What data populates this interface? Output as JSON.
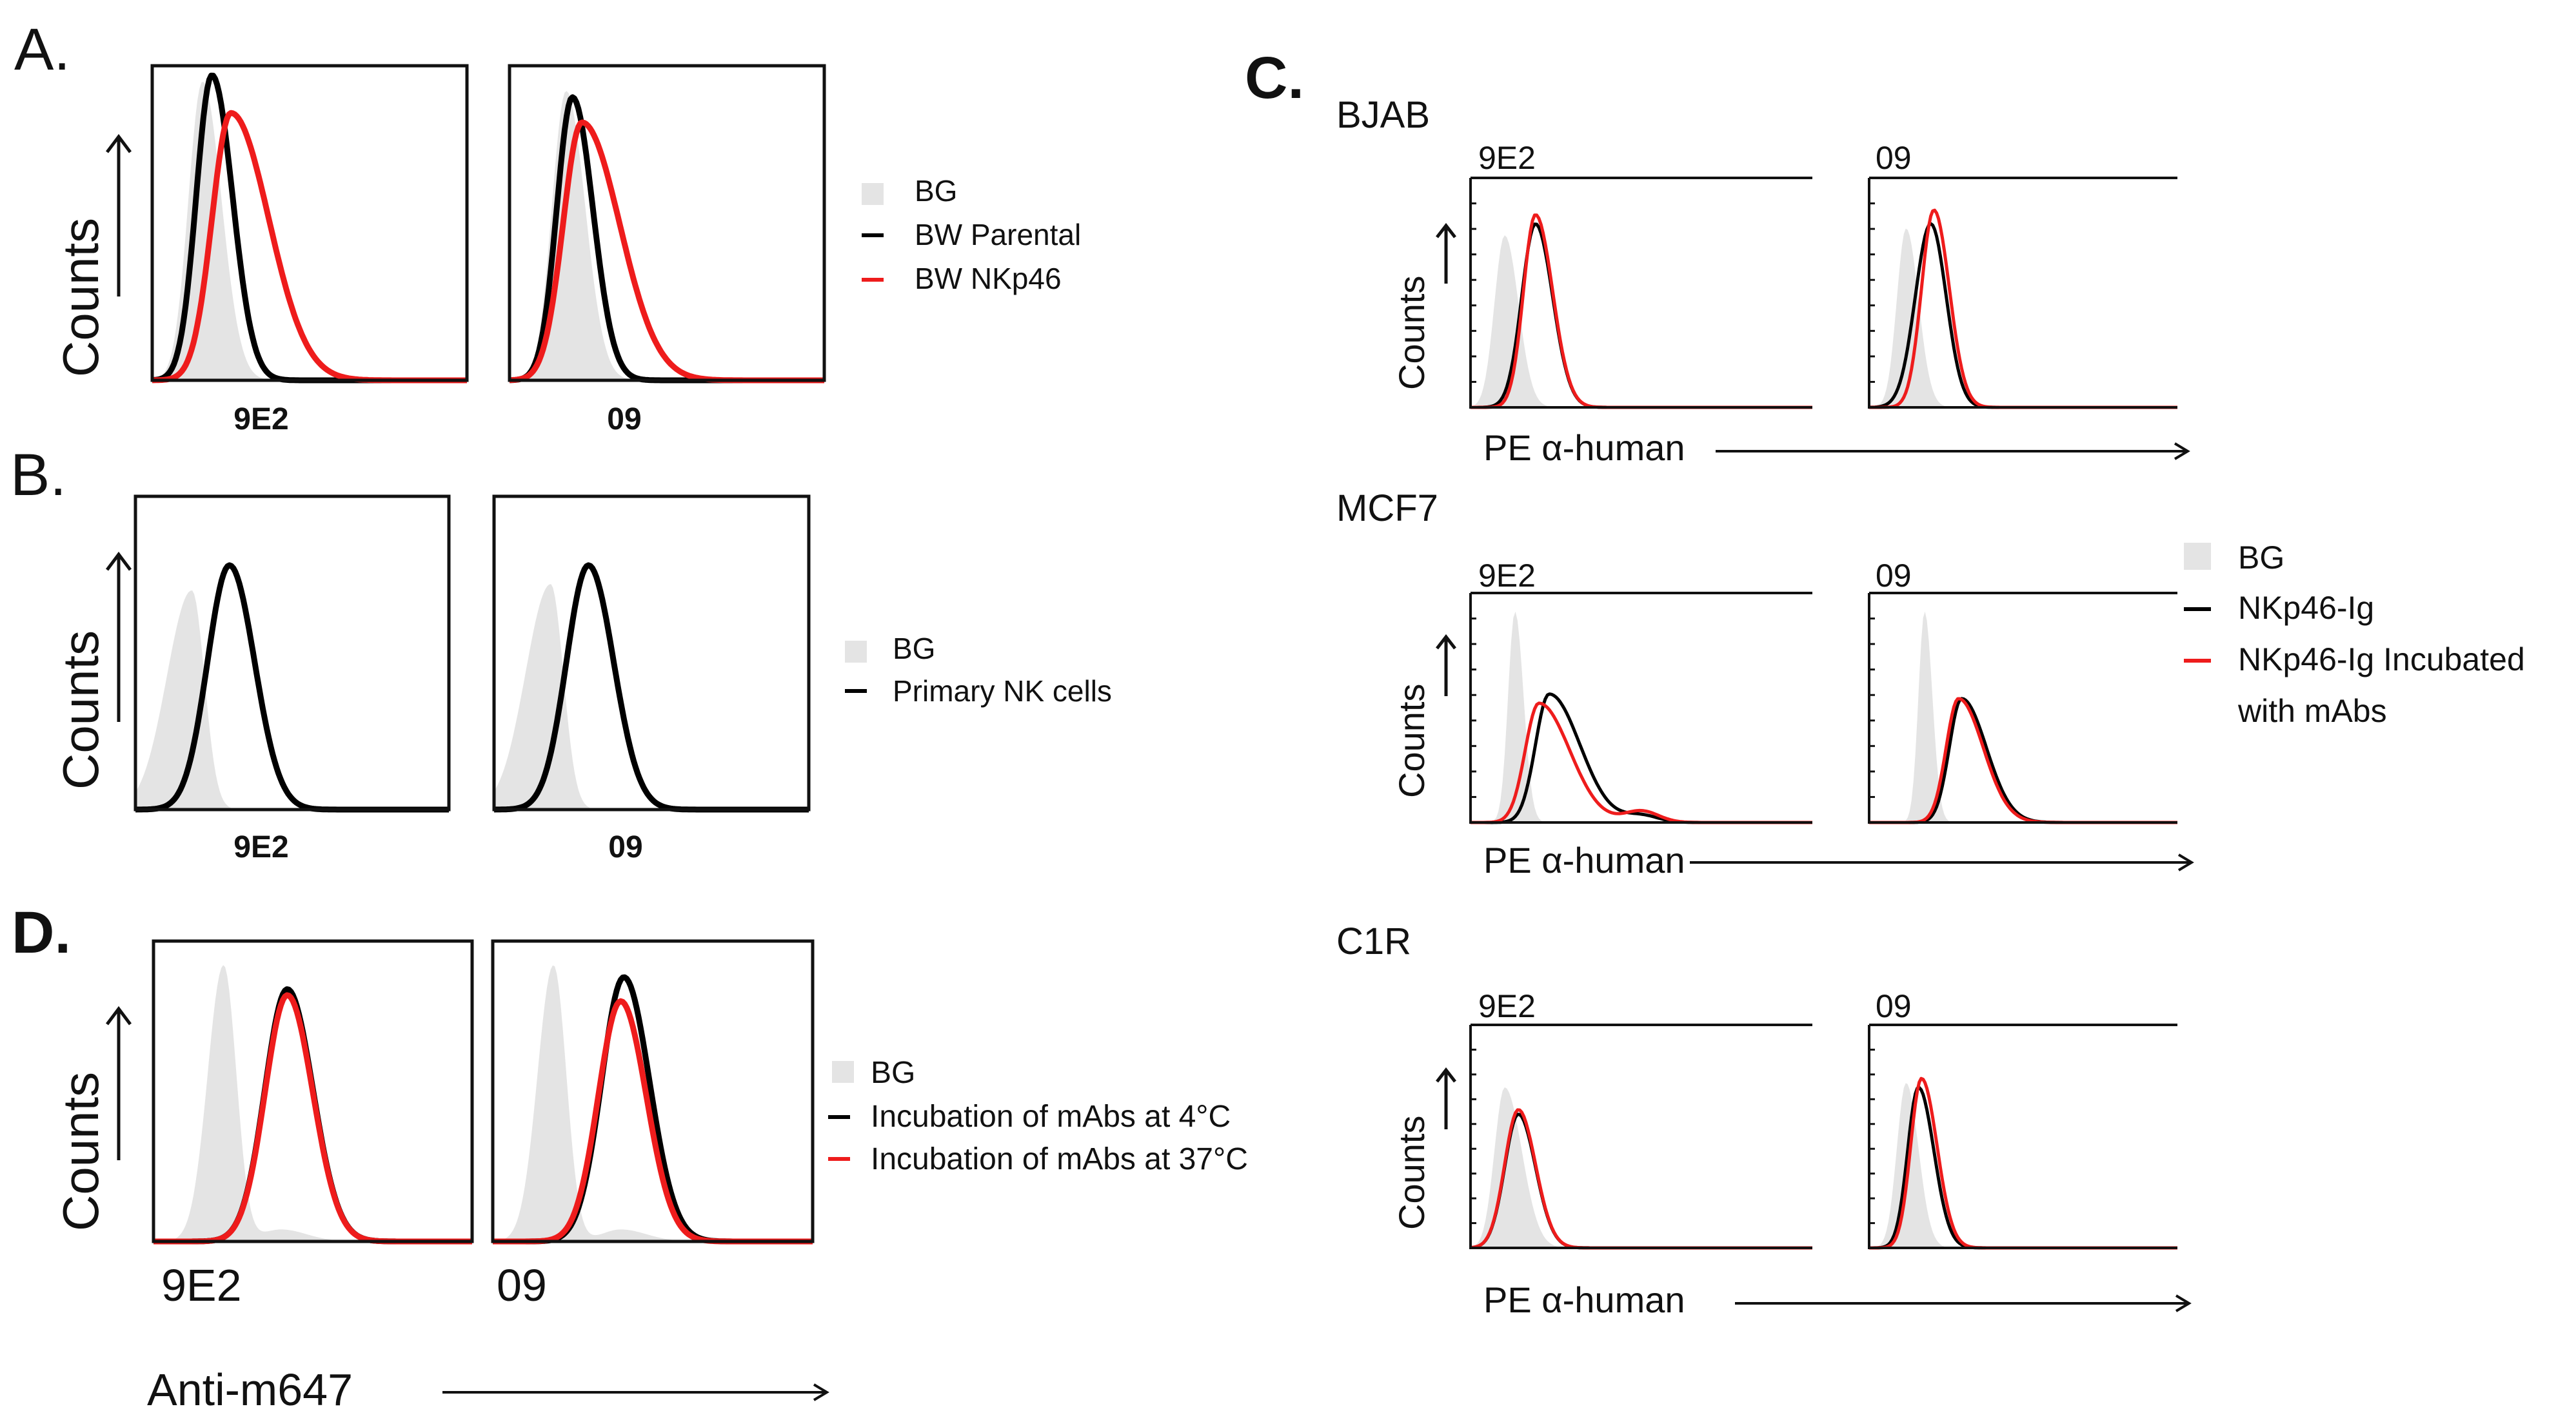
{
  "figure": {
    "panels": {
      "A": {
        "letter": "A.",
        "ylabel": "Counts",
        "plots": [
          "9E2",
          "09"
        ],
        "legend": [
          {
            "label": "BG",
            "kind": "fill",
            "color": "#e4e4e4"
          },
          {
            "label": "BW Parental",
            "kind": "line",
            "color": "#000000"
          },
          {
            "label": "BW NKp46",
            "kind": "line",
            "color": "#ee1c1c"
          }
        ]
      },
      "B": {
        "letter": "B.",
        "ylabel": "Counts",
        "plots": [
          "9E2",
          "09"
        ],
        "legend": [
          {
            "label": "BG",
            "kind": "fill",
            "color": "#e4e4e4"
          },
          {
            "label": "Primary NK cells",
            "kind": "line",
            "color": "#000000"
          }
        ]
      },
      "C": {
        "letter": "C.",
        "ylabel": "Counts",
        "xlabel": "PE α-human",
        "rows": [
          "BJAB",
          "MCF7",
          "C1R"
        ],
        "plots": [
          "9E2",
          "09"
        ],
        "legend": [
          {
            "label": "BG",
            "kind": "fill",
            "color": "#e4e4e4"
          },
          {
            "label": "NKp46-Ig",
            "kind": "line",
            "color": "#000000"
          },
          {
            "label": "NKp46-Ig Incubated",
            "kind": "line",
            "color": "#ee1c1c"
          },
          {
            "label": "with mAbs",
            "kind": "none",
            "color": ""
          }
        ]
      },
      "D": {
        "letter": "D.",
        "ylabel": "Counts",
        "xlabel": "Anti-m647",
        "plots": [
          "9E2",
          "09"
        ],
        "legend": [
          {
            "label": "BG",
            "kind": "fill",
            "color": "#e4e4e4"
          },
          {
            "label": "Incubation of mAbs at 4°C",
            "kind": "line",
            "color": "#000000"
          },
          {
            "label": "Incubation of mAbs at 37°C",
            "kind": "line",
            "color": "#ee1c1c"
          }
        ]
      }
    }
  },
  "chart_data": [
    {
      "type": "area",
      "panel": "A",
      "title": "9E2",
      "xlabel": "9E2",
      "ylabel": "Counts",
      "xlim": [
        0,
        1
      ],
      "ylim": [
        0,
        1
      ],
      "series": [
        {
          "name": "BG",
          "style": "fill",
          "color": "#e4e4e4",
          "peaks": [
            {
              "mu": 0.16,
              "sl": 0.045,
              "sr": 0.06,
              "h": 0.95
            }
          ]
        },
        {
          "name": "BW Parental",
          "style": "line",
          "color": "#000000",
          "peaks": [
            {
              "mu": 0.19,
              "sl": 0.05,
              "sr": 0.065,
              "h": 0.97
            }
          ]
        },
        {
          "name": "BW NKp46",
          "style": "line",
          "color": "#ee1c1c",
          "peaks": [
            {
              "mu": 0.25,
              "sl": 0.06,
              "sr": 0.12,
              "h": 0.85
            }
          ]
        }
      ]
    },
    {
      "type": "area",
      "panel": "A",
      "title": "09",
      "xlabel": "09",
      "ylabel": "Counts",
      "xlim": [
        0,
        1
      ],
      "ylim": [
        0,
        1
      ],
      "series": [
        {
          "name": "BG",
          "style": "fill",
          "color": "#e4e4e4",
          "peaks": [
            {
              "mu": 0.18,
              "sl": 0.045,
              "sr": 0.06,
              "h": 0.92
            }
          ]
        },
        {
          "name": "BW Parental",
          "style": "line",
          "color": "#000000",
          "peaks": [
            {
              "mu": 0.2,
              "sl": 0.05,
              "sr": 0.065,
              "h": 0.9
            }
          ]
        },
        {
          "name": "BW NKp46",
          "style": "line",
          "color": "#ee1c1c",
          "peaks": [
            {
              "mu": 0.23,
              "sl": 0.06,
              "sr": 0.12,
              "h": 0.82
            }
          ]
        }
      ]
    },
    {
      "type": "area",
      "panel": "B",
      "title": "9E2",
      "xlabel": "9E2",
      "ylabel": "Counts",
      "xlim": [
        0,
        1
      ],
      "ylim": [
        0,
        1
      ],
      "series": [
        {
          "name": "BG",
          "style": "fill",
          "color": "#e4e4e4",
          "peaks": [
            {
              "mu": 0.18,
              "sl": 0.08,
              "sr": 0.04,
              "h": 0.7
            }
          ]
        },
        {
          "name": "Primary NK cells",
          "style": "line",
          "color": "#000000",
          "peaks": [
            {
              "mu": 0.3,
              "sl": 0.07,
              "sr": 0.08,
              "h": 0.78
            }
          ]
        }
      ]
    },
    {
      "type": "area",
      "panel": "B",
      "title": "09",
      "xlabel": "09",
      "ylabel": "Counts",
      "xlim": [
        0,
        1
      ],
      "ylim": [
        0,
        1
      ],
      "series": [
        {
          "name": "BG",
          "style": "fill",
          "color": "#e4e4e4",
          "peaks": [
            {
              "mu": 0.18,
              "sl": 0.08,
              "sr": 0.04,
              "h": 0.72
            }
          ]
        },
        {
          "name": "Primary NK cells",
          "style": "line",
          "color": "#000000",
          "peaks": [
            {
              "mu": 0.3,
              "sl": 0.07,
              "sr": 0.08,
              "h": 0.78
            }
          ]
        }
      ]
    },
    {
      "type": "area",
      "panel": "C",
      "row": "BJAB",
      "title": "9E2",
      "xlabel": "PE α-human",
      "ylabel": "Counts",
      "xlim": [
        0,
        1
      ],
      "ylim": [
        0,
        1
      ],
      "series": [
        {
          "name": "BG",
          "style": "fill",
          "color": "#e4e4e4",
          "peaks": [
            {
              "mu": 0.1,
              "sl": 0.03,
              "sr": 0.04,
              "h": 0.75
            }
          ]
        },
        {
          "name": "NKp46-Ig",
          "style": "line",
          "color": "#000000",
          "peaks": [
            {
              "mu": 0.19,
              "sl": 0.04,
              "sr": 0.05,
              "h": 0.8
            }
          ]
        },
        {
          "name": "NKp46-Ig Incubated with mAbs",
          "style": "line",
          "color": "#ee1c1c",
          "peaks": [
            {
              "mu": 0.19,
              "sl": 0.035,
              "sr": 0.05,
              "h": 0.84
            }
          ]
        }
      ]
    },
    {
      "type": "area",
      "panel": "C",
      "row": "BJAB",
      "title": "09",
      "xlabel": "PE α-human",
      "ylabel": "Counts",
      "xlim": [
        0,
        1
      ],
      "ylim": [
        0,
        1
      ],
      "series": [
        {
          "name": "BG",
          "style": "fill",
          "color": "#e4e4e4",
          "peaks": [
            {
              "mu": 0.12,
              "sl": 0.03,
              "sr": 0.04,
              "h": 0.78
            }
          ]
        },
        {
          "name": "NKp46-Ig",
          "style": "line",
          "color": "#000000",
          "peaks": [
            {
              "mu": 0.2,
              "sl": 0.05,
              "sr": 0.05,
              "h": 0.8
            }
          ]
        },
        {
          "name": "NKp46-Ig Incubated with mAbs",
          "style": "line",
          "color": "#ee1c1c",
          "peaks": [
            {
              "mu": 0.21,
              "sl": 0.04,
              "sr": 0.05,
              "h": 0.86
            }
          ]
        }
      ]
    },
    {
      "type": "area",
      "panel": "C",
      "row": "MCF7",
      "title": "9E2",
      "xlabel": "PE α-human",
      "ylabel": "Counts",
      "xlim": [
        0,
        1
      ],
      "ylim": [
        0,
        1
      ],
      "series": [
        {
          "name": "BG",
          "style": "fill",
          "color": "#e4e4e4",
          "peaks": [
            {
              "mu": 0.13,
              "sl": 0.02,
              "sr": 0.025,
              "h": 0.92
            }
          ]
        },
        {
          "name": "NKp46-Ig",
          "style": "line",
          "color": "#000000",
          "peaks": [
            {
              "mu": 0.23,
              "sl": 0.04,
              "sr": 0.09,
              "h": 0.56
            },
            {
              "mu": 0.5,
              "sl": 0.05,
              "sr": 0.05,
              "h": 0.03
            }
          ]
        },
        {
          "name": "NKp46-Ig Incubated with mAbs",
          "style": "line",
          "color": "#ee1c1c",
          "peaks": [
            {
              "mu": 0.2,
              "sl": 0.04,
              "sr": 0.09,
              "h": 0.52
            },
            {
              "mu": 0.5,
              "sl": 0.05,
              "sr": 0.05,
              "h": 0.05
            }
          ]
        }
      ]
    },
    {
      "type": "area",
      "panel": "C",
      "row": "MCF7",
      "title": "09",
      "xlabel": "PE α-human",
      "ylabel": "Counts",
      "xlim": [
        0,
        1
      ],
      "ylim": [
        0,
        1
      ],
      "series": [
        {
          "name": "BG",
          "style": "fill",
          "color": "#e4e4e4",
          "peaks": [
            {
              "mu": 0.18,
              "sl": 0.02,
              "sr": 0.025,
              "h": 0.92
            }
          ]
        },
        {
          "name": "NKp46-Ig",
          "style": "line",
          "color": "#000000",
          "peaks": [
            {
              "mu": 0.3,
              "sl": 0.04,
              "sr": 0.08,
              "h": 0.54
            }
          ]
        },
        {
          "name": "NKp46-Ig Incubated with mAbs",
          "style": "line",
          "color": "#ee1c1c",
          "peaks": [
            {
              "mu": 0.29,
              "sl": 0.04,
              "sr": 0.08,
              "h": 0.54
            }
          ]
        }
      ]
    },
    {
      "type": "area",
      "panel": "C",
      "row": "C1R",
      "title": "9E2",
      "xlabel": "PE α-human",
      "ylabel": "Counts",
      "xlim": [
        0,
        1
      ],
      "ylim": [
        0,
        1
      ],
      "series": [
        {
          "name": "BG",
          "style": "fill",
          "color": "#e4e4e4",
          "peaks": [
            {
              "mu": 0.1,
              "sl": 0.03,
              "sr": 0.05,
              "h": 0.72
            }
          ]
        },
        {
          "name": "NKp46-Ig",
          "style": "line",
          "color": "#000000",
          "peaks": [
            {
              "mu": 0.14,
              "sl": 0.04,
              "sr": 0.05,
              "h": 0.6
            }
          ]
        },
        {
          "name": "NKp46-Ig Incubated with mAbs",
          "style": "line",
          "color": "#ee1c1c",
          "peaks": [
            {
              "mu": 0.14,
              "sl": 0.04,
              "sr": 0.05,
              "h": 0.62
            }
          ]
        }
      ]
    },
    {
      "type": "area",
      "panel": "C",
      "row": "C1R",
      "title": "09",
      "xlabel": "PE α-human",
      "ylabel": "Counts",
      "xlim": [
        0,
        1
      ],
      "ylim": [
        0,
        1
      ],
      "series": [
        {
          "name": "BG",
          "style": "fill",
          "color": "#e4e4e4",
          "peaks": [
            {
              "mu": 0.12,
              "sl": 0.03,
              "sr": 0.04,
              "h": 0.74
            }
          ]
        },
        {
          "name": "NKp46-Ig",
          "style": "line",
          "color": "#000000",
          "peaks": [
            {
              "mu": 0.16,
              "sl": 0.035,
              "sr": 0.05,
              "h": 0.72
            }
          ]
        },
        {
          "name": "NKp46-Ig Incubated with mAbs",
          "style": "line",
          "color": "#ee1c1c",
          "peaks": [
            {
              "mu": 0.17,
              "sl": 0.035,
              "sr": 0.05,
              "h": 0.76
            }
          ]
        }
      ]
    },
    {
      "type": "area",
      "panel": "D",
      "title": "9E2",
      "xlabel": "Anti-m647",
      "ylabel": "Counts",
      "xlim": [
        0,
        1
      ],
      "ylim": [
        0,
        1
      ],
      "series": [
        {
          "name": "BG",
          "style": "fill",
          "color": "#e4e4e4",
          "peaks": [
            {
              "mu": 0.22,
              "sl": 0.05,
              "sr": 0.04,
              "h": 0.92
            },
            {
              "mu": 0.4,
              "sl": 0.06,
              "sr": 0.08,
              "h": 0.04
            }
          ]
        },
        {
          "name": "Incubation of mAbs at 4°C",
          "style": "line",
          "color": "#000000",
          "peaks": [
            {
              "mu": 0.42,
              "sl": 0.07,
              "sr": 0.08,
              "h": 0.84
            }
          ]
        },
        {
          "name": "Incubation of mAbs at 37°C",
          "style": "line",
          "color": "#ee1c1c",
          "peaks": [
            {
              "mu": 0.42,
              "sl": 0.07,
              "sr": 0.08,
              "h": 0.82
            }
          ]
        }
      ]
    },
    {
      "type": "area",
      "panel": "D",
      "title": "09",
      "xlabel": "Anti-m647",
      "ylabel": "Counts",
      "xlim": [
        0,
        1
      ],
      "ylim": [
        0,
        1
      ],
      "series": [
        {
          "name": "BG",
          "style": "fill",
          "color": "#e4e4e4",
          "peaks": [
            {
              "mu": 0.19,
              "sl": 0.05,
              "sr": 0.04,
              "h": 0.92
            },
            {
              "mu": 0.4,
              "sl": 0.06,
              "sr": 0.08,
              "h": 0.04
            }
          ]
        },
        {
          "name": "Incubation of mAbs at 4°C",
          "style": "line",
          "color": "#000000",
          "peaks": [
            {
              "mu": 0.41,
              "sl": 0.07,
              "sr": 0.08,
              "h": 0.88
            }
          ]
        },
        {
          "name": "Incubation of mAbs at 37°C",
          "style": "line",
          "color": "#ee1c1c",
          "peaks": [
            {
              "mu": 0.4,
              "sl": 0.07,
              "sr": 0.08,
              "h": 0.8
            }
          ]
        }
      ]
    }
  ]
}
